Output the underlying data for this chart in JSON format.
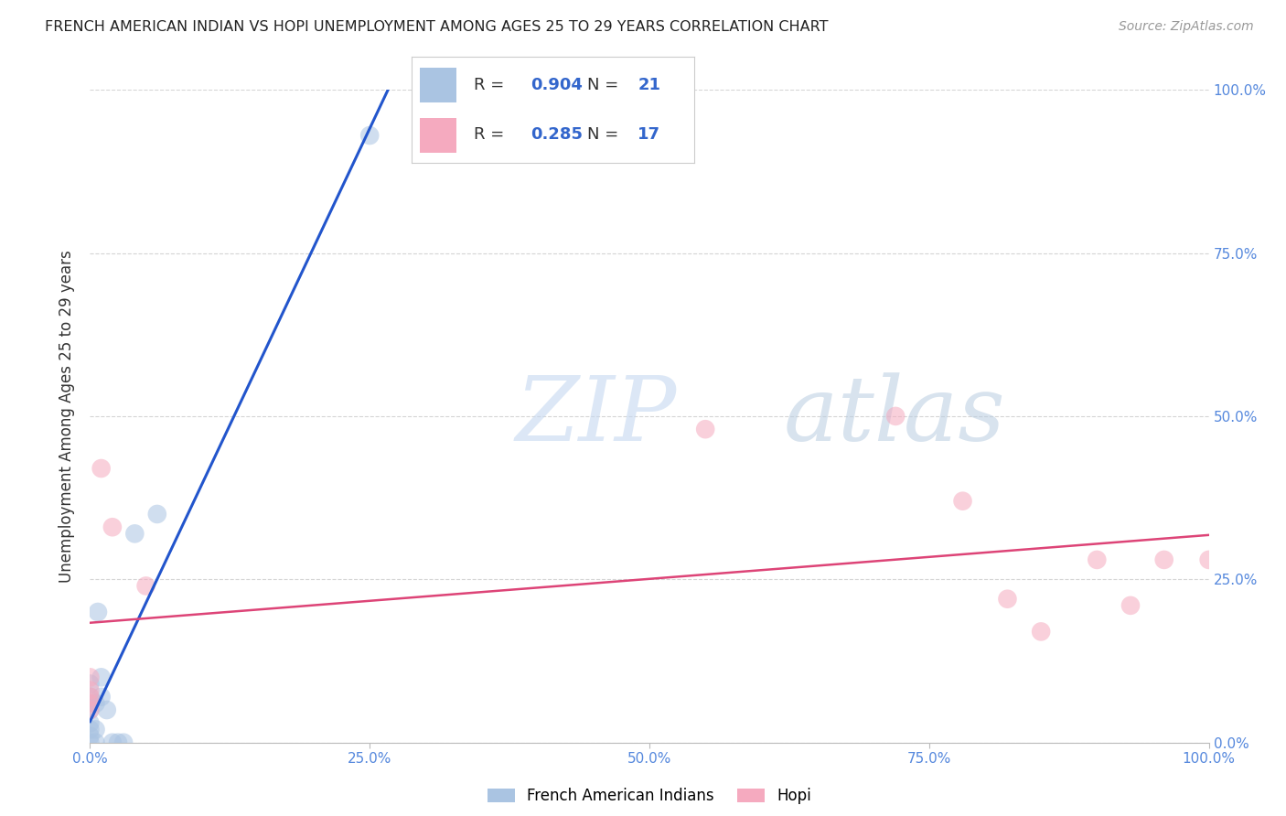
{
  "title": "FRENCH AMERICAN INDIAN VS HOPI UNEMPLOYMENT AMONG AGES 25 TO 29 YEARS CORRELATION CHART",
  "source": "Source: ZipAtlas.com",
  "ylabel": "Unemployment Among Ages 25 to 29 years",
  "xlim": [
    0,
    1.0
  ],
  "ylim": [
    0,
    1.0
  ],
  "xticks": [
    0.0,
    0.25,
    0.5,
    0.75,
    1.0
  ],
  "yticks": [
    0.0,
    0.25,
    0.5,
    0.75,
    1.0
  ],
  "xticklabels": [
    "0.0%",
    "25.0%",
    "50.0%",
    "75.0%",
    "100.0%"
  ],
  "yticklabels": [
    "0.0%",
    "25.0%",
    "50.0%",
    "75.0%",
    "100.0%"
  ],
  "french_R": "0.904",
  "french_N": "21",
  "hopi_R": "0.285",
  "hopi_N": "17",
  "french_color": "#aac4e2",
  "hopi_color": "#f5aabf",
  "french_line_color": "#2255cc",
  "hopi_line_color": "#dd4477",
  "watermark_zip": "ZIP",
  "watermark_atlas": "atlas",
  "french_points_x": [
    0.0,
    0.0,
    0.0,
    0.0,
    0.0,
    0.0,
    0.0,
    0.0,
    0.005,
    0.005,
    0.005,
    0.007,
    0.01,
    0.01,
    0.015,
    0.02,
    0.025,
    0.03,
    0.04,
    0.06,
    0.25
  ],
  "french_points_y": [
    0.0,
    0.01,
    0.02,
    0.03,
    0.05,
    0.06,
    0.07,
    0.09,
    0.0,
    0.02,
    0.06,
    0.2,
    0.07,
    0.1,
    0.05,
    0.0,
    0.0,
    0.0,
    0.32,
    0.35,
    0.93
  ],
  "hopi_points_x": [
    0.0,
    0.0,
    0.0,
    0.0,
    0.0,
    0.01,
    0.02,
    0.05,
    0.55,
    0.72,
    0.78,
    0.82,
    0.85,
    0.9,
    0.93,
    0.96,
    1.0
  ],
  "hopi_points_y": [
    0.05,
    0.06,
    0.07,
    0.08,
    0.1,
    0.42,
    0.33,
    0.24,
    0.48,
    0.5,
    0.37,
    0.22,
    0.17,
    0.28,
    0.21,
    0.28,
    0.28
  ],
  "background_color": "#ffffff",
  "grid_color": "#d5d5d5",
  "tick_color": "#5588dd",
  "marker_size": 220,
  "marker_alpha": 0.55
}
